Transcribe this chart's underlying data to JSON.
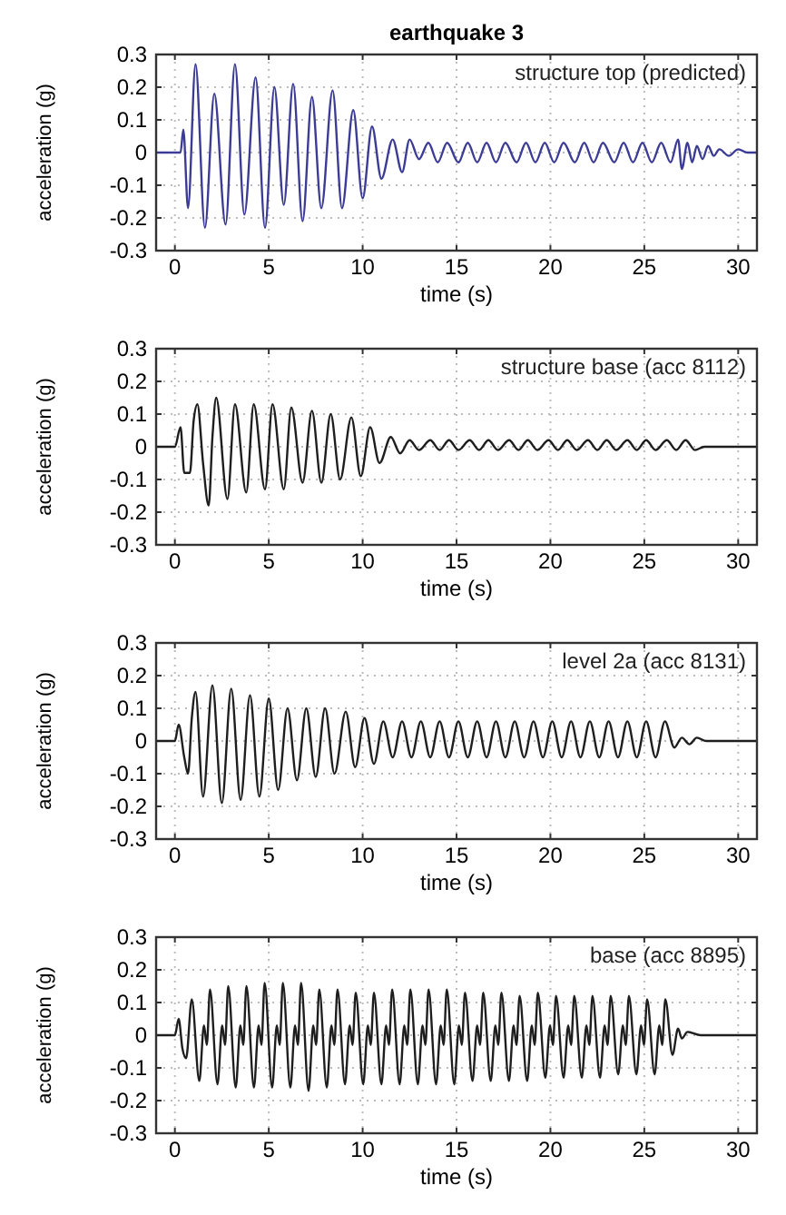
{
  "chart_data": [
    {
      "type": "line",
      "title": "earthquake 3",
      "xlabel": "time (s)",
      "ylabel": "acceleration (g)",
      "annotations": [
        "structure top (predicted)"
      ],
      "xlim": [
        -1,
        31
      ],
      "ylim": [
        -0.3,
        0.3
      ],
      "xticks": [
        0,
        5,
        10,
        15,
        20,
        25,
        30
      ],
      "yticks": [
        -0.3,
        -0.2,
        -0.1,
        0,
        0.1,
        0.2,
        0.3
      ],
      "grid": true,
      "x": [
        -1,
        0,
        0.3,
        0.45,
        0.7,
        1.1,
        1.6,
        2.1,
        2.7,
        3.2,
        3.7,
        4.3,
        4.8,
        5.3,
        5.8,
        6.3,
        6.8,
        7.3,
        7.8,
        8.4,
        8.9,
        9.5,
        10.0,
        10.5,
        11.0,
        11.6,
        12.1,
        12.5,
        13.0,
        13.5,
        14.0,
        14.5,
        15.1,
        15.6,
        16.1,
        16.6,
        17.1,
        17.6,
        18.2,
        18.7,
        19.2,
        19.7,
        20.2,
        20.7,
        21.3,
        21.8,
        22.3,
        22.8,
        23.4,
        23.9,
        24.4,
        24.9,
        25.4,
        25.9,
        26.4,
        26.8,
        27.0,
        27.3,
        27.55,
        27.8,
        28.1,
        28.4,
        28.7,
        29.0,
        29.5,
        30.0,
        30.5,
        31
      ],
      "series": [
        {
          "color": "#3c3c96",
          "values": [
            0,
            0,
            0,
            0.07,
            -0.17,
            0.27,
            -0.23,
            0.18,
            -0.22,
            0.27,
            -0.19,
            0.23,
            -0.23,
            0.2,
            -0.16,
            0.21,
            -0.21,
            0.17,
            -0.17,
            0.19,
            -0.17,
            0.13,
            -0.14,
            0.08,
            -0.08,
            0.04,
            -0.06,
            0.04,
            -0.02,
            0.03,
            -0.03,
            0.03,
            -0.03,
            0.03,
            -0.03,
            0.03,
            -0.03,
            0.03,
            -0.03,
            0.03,
            -0.03,
            0.03,
            -0.03,
            0.03,
            -0.03,
            0.03,
            -0.03,
            0.03,
            -0.03,
            0.03,
            -0.03,
            0.03,
            -0.03,
            0.03,
            -0.03,
            0.04,
            -0.05,
            0.03,
            -0.03,
            0.02,
            -0.02,
            0.02,
            -0.01,
            0.01,
            -0.01,
            0.01,
            0,
            0
          ]
        }
      ]
    },
    {
      "type": "line",
      "xlabel": "time (s)",
      "ylabel": "acceleration (g)",
      "annotations": [
        "structure base (acc 8112)"
      ],
      "xlim": [
        -1,
        31
      ],
      "ylim": [
        -0.3,
        0.3
      ],
      "xticks": [
        0,
        5,
        10,
        15,
        20,
        25,
        30
      ],
      "yticks": [
        -0.3,
        -0.2,
        -0.1,
        0,
        0.1,
        0.2,
        0.3
      ],
      "grid": true,
      "x": [
        -1,
        0,
        0.3,
        0.5,
        0.8,
        1.0,
        1.2,
        1.5,
        1.8,
        2.0,
        2.2,
        2.8,
        3.2,
        3.8,
        4.2,
        4.8,
        5.2,
        5.8,
        6.2,
        6.8,
        7.3,
        7.8,
        8.3,
        8.8,
        9.4,
        9.9,
        10.4,
        10.9,
        11.5,
        12.0,
        12.5,
        13.0,
        13.6,
        14.1,
        14.6,
        15.1,
        15.7,
        16.2,
        16.7,
        17.2,
        17.8,
        18.3,
        18.8,
        19.3,
        19.9,
        20.4,
        20.9,
        21.4,
        22.0,
        22.5,
        23.0,
        23.5,
        24.1,
        24.6,
        25.1,
        25.6,
        26.2,
        26.7,
        27.2,
        27.7,
        28.2,
        31
      ],
      "series": [
        {
          "color": "#1e1e1e",
          "values": [
            0,
            0,
            0.06,
            -0.08,
            -0.08,
            0.08,
            0.13,
            -0.05,
            -0.18,
            0.03,
            0.15,
            -0.16,
            0.13,
            -0.14,
            0.13,
            -0.13,
            0.13,
            -0.13,
            0.12,
            -0.11,
            0.11,
            -0.11,
            0.1,
            -0.1,
            0.09,
            -0.09,
            0.06,
            -0.05,
            0.03,
            -0.02,
            0.02,
            -0.01,
            0.02,
            -0.01,
            0.02,
            -0.01,
            0.02,
            -0.01,
            0.02,
            -0.01,
            0.02,
            -0.01,
            0.02,
            -0.01,
            0.02,
            -0.01,
            0.02,
            -0.01,
            0.02,
            -0.01,
            0.02,
            -0.01,
            0.02,
            -0.01,
            0.02,
            -0.01,
            0.02,
            -0.01,
            0.02,
            -0.01,
            0,
            0
          ]
        }
      ]
    },
    {
      "type": "line",
      "xlabel": "time (s)",
      "ylabel": "acceleration (g)",
      "annotations": [
        "level 2a  (acc 8131)"
      ],
      "xlim": [
        -1,
        31
      ],
      "ylim": [
        -0.3,
        0.3
      ],
      "xticks": [
        0,
        5,
        10,
        15,
        20,
        25,
        30
      ],
      "yticks": [
        -0.3,
        -0.2,
        -0.1,
        0,
        0.1,
        0.2,
        0.3
      ],
      "grid": true,
      "x": [
        -1,
        0,
        0.2,
        0.5,
        0.7,
        0.9,
        1.1,
        1.5,
        2.0,
        2.5,
        3.0,
        3.5,
        4.0,
        4.5,
        5.0,
        5.5,
        6.0,
        6.5,
        7.0,
        7.5,
        8.0,
        8.5,
        9.1,
        9.6,
        10.1,
        10.6,
        11.1,
        11.6,
        12.1,
        12.6,
        13.1,
        13.6,
        14.1,
        14.6,
        15.1,
        15.6,
        16.1,
        16.6,
        17.1,
        17.6,
        18.1,
        18.6,
        19.1,
        19.6,
        20.1,
        20.6,
        21.1,
        21.6,
        22.1,
        22.6,
        23.1,
        23.6,
        24.1,
        24.6,
        25.1,
        25.6,
        26.1,
        26.6,
        27.0,
        27.4,
        27.8,
        28.3,
        31
      ],
      "series": [
        {
          "color": "#1e1e1e",
          "values": [
            0,
            0,
            0.05,
            -0.05,
            -0.1,
            0.07,
            0.15,
            -0.17,
            0.17,
            -0.19,
            0.16,
            -0.18,
            0.14,
            -0.17,
            0.13,
            -0.15,
            0.1,
            -0.12,
            0.1,
            -0.11,
            0.1,
            -0.1,
            0.09,
            -0.08,
            0.07,
            -0.07,
            0.06,
            -0.05,
            0.06,
            -0.05,
            0.06,
            -0.05,
            0.06,
            -0.05,
            0.06,
            -0.05,
            0.06,
            -0.05,
            0.06,
            -0.05,
            0.06,
            -0.05,
            0.06,
            -0.05,
            0.06,
            -0.05,
            0.06,
            -0.05,
            0.06,
            -0.05,
            0.06,
            -0.05,
            0.06,
            -0.05,
            0.06,
            -0.05,
            0.06,
            -0.02,
            0.01,
            -0.01,
            0.01,
            0,
            0
          ]
        }
      ]
    },
    {
      "type": "line",
      "xlabel": "time (s)",
      "ylabel": "acceleration (g)",
      "annotations": [
        "base (acc 8895)"
      ],
      "xlim": [
        -1,
        31
      ],
      "ylim": [
        -0.3,
        0.3
      ],
      "xticks": [
        0,
        5,
        10,
        15,
        20,
        25,
        30
      ],
      "yticks": [
        -0.3,
        -0.2,
        -0.1,
        0,
        0.1,
        0.2,
        0.3
      ],
      "grid": true,
      "x": [
        -1,
        0,
        0.2,
        0.4,
        0.6,
        0.9,
        1.3,
        1.55,
        1.7,
        1.87,
        2.27,
        2.52,
        2.67,
        2.84,
        3.24,
        3.49,
        3.64,
        3.81,
        4.21,
        4.46,
        4.61,
        4.78,
        5.18,
        5.43,
        5.58,
        5.75,
        6.15,
        6.4,
        6.55,
        6.72,
        7.12,
        7.37,
        7.52,
        7.69,
        8.09,
        8.34,
        8.49,
        8.66,
        9.06,
        9.31,
        9.46,
        9.63,
        10.03,
        10.28,
        10.43,
        10.6,
        11.0,
        11.25,
        11.4,
        11.57,
        11.97,
        12.22,
        12.37,
        12.54,
        12.94,
        13.19,
        13.34,
        13.51,
        13.91,
        14.16,
        14.31,
        14.48,
        14.88,
        15.13,
        15.28,
        15.45,
        15.85,
        16.1,
        16.25,
        16.42,
        16.82,
        17.07,
        17.22,
        17.39,
        17.79,
        18.04,
        18.19,
        18.36,
        18.76,
        19.01,
        19.16,
        19.33,
        19.73,
        19.98,
        20.13,
        20.3,
        20.7,
        20.95,
        21.1,
        21.27,
        21.67,
        21.92,
        22.07,
        22.24,
        22.64,
        22.89,
        23.04,
        23.21,
        23.61,
        23.86,
        24.01,
        24.18,
        24.58,
        24.83,
        24.98,
        25.15,
        25.55,
        25.8,
        25.95,
        26.12,
        26.5,
        26.8,
        27.0,
        27.3,
        28,
        31
      ],
      "series": [
        {
          "color": "#1e1e1e",
          "values": [
            0,
            0,
            0.05,
            -0.04,
            -0.07,
            0.11,
            -0.14,
            0.03,
            -0.03,
            0.14,
            -0.15,
            0.03,
            -0.03,
            0.15,
            -0.16,
            0.03,
            -0.03,
            0.15,
            -0.16,
            0.03,
            -0.03,
            0.16,
            -0.16,
            0.03,
            -0.03,
            0.16,
            -0.16,
            0.03,
            -0.03,
            0.16,
            -0.17,
            0.03,
            -0.03,
            0.14,
            -0.16,
            0.03,
            -0.03,
            0.14,
            -0.15,
            0.03,
            -0.03,
            0.13,
            -0.15,
            0.03,
            -0.03,
            0.13,
            -0.15,
            0.03,
            -0.03,
            0.14,
            -0.15,
            0.03,
            -0.03,
            0.14,
            -0.15,
            0.03,
            -0.03,
            0.14,
            -0.15,
            0.03,
            -0.03,
            0.14,
            -0.15,
            0.03,
            -0.03,
            0.13,
            -0.14,
            0.03,
            -0.03,
            0.13,
            -0.14,
            0.03,
            -0.03,
            0.13,
            -0.14,
            0.03,
            -0.03,
            0.12,
            -0.14,
            0.03,
            -0.03,
            0.13,
            -0.13,
            0.03,
            -0.03,
            0.12,
            -0.13,
            0.03,
            -0.03,
            0.12,
            -0.13,
            0.03,
            -0.03,
            0.12,
            -0.13,
            0.03,
            -0.03,
            0.12,
            -0.12,
            0.03,
            -0.03,
            0.12,
            -0.12,
            0.03,
            -0.03,
            0.11,
            -0.12,
            0.03,
            -0.03,
            0.11,
            -0.06,
            0.02,
            -0.01,
            0.01,
            0,
            0
          ]
        }
      ]
    }
  ]
}
